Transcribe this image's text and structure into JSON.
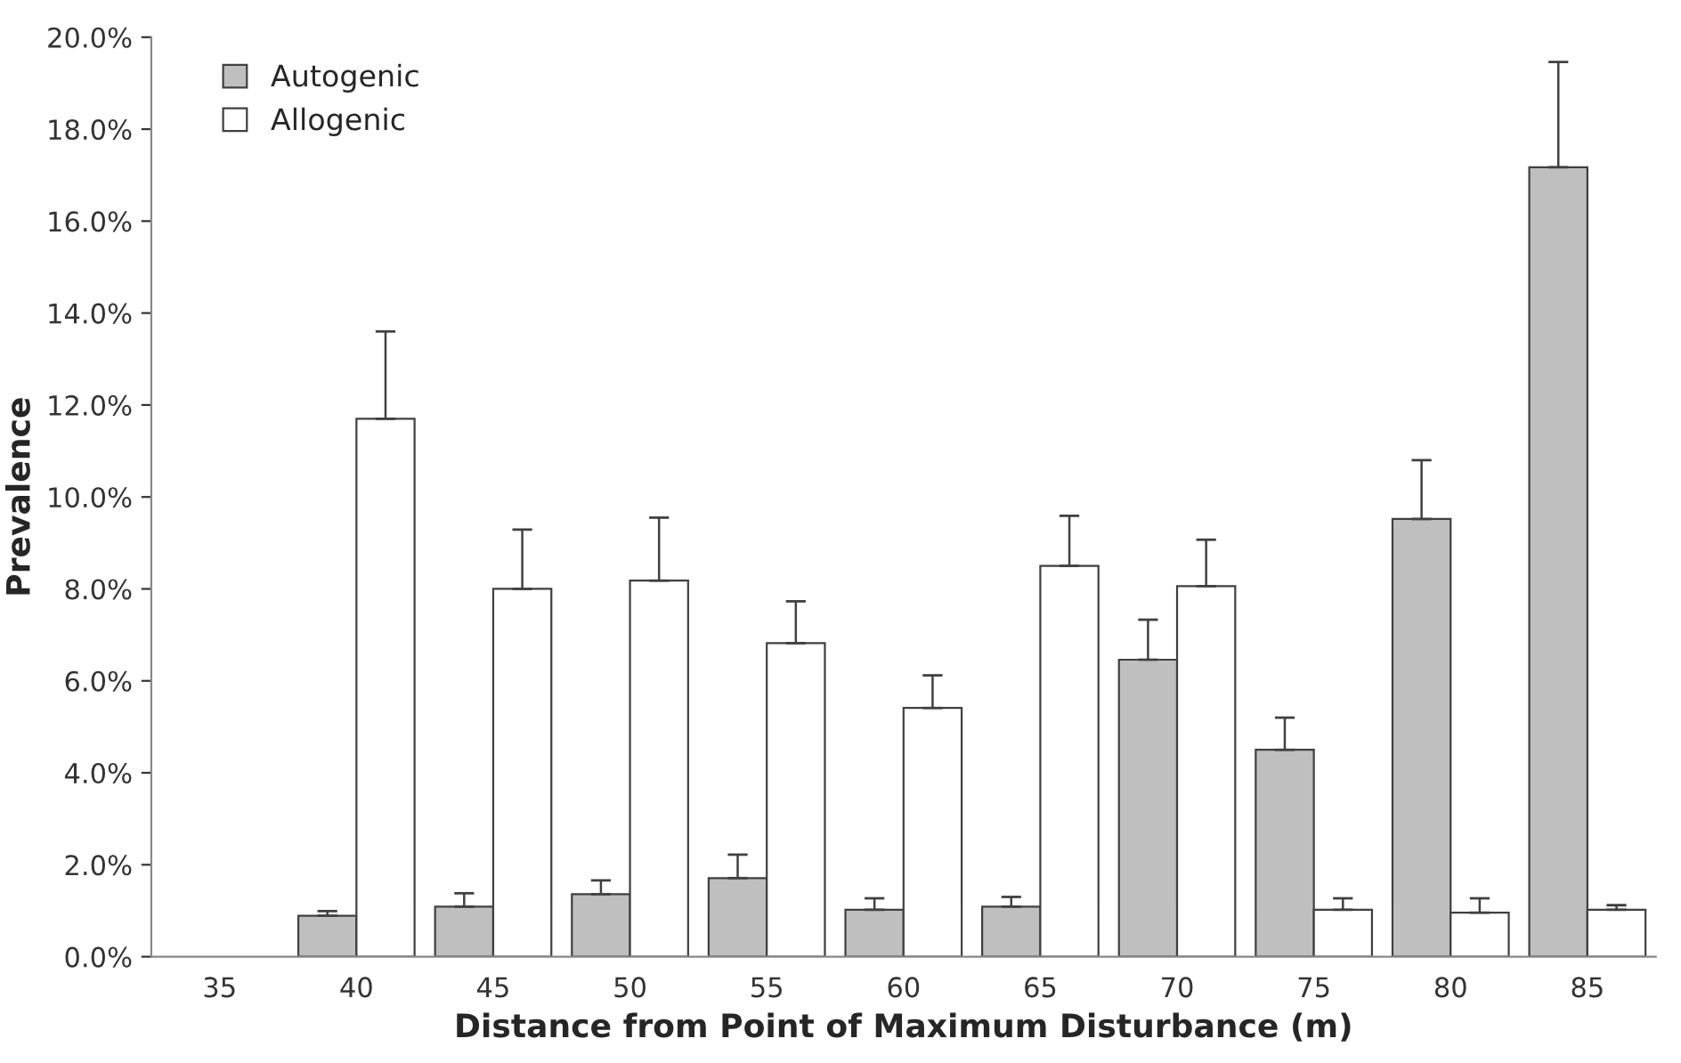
{
  "chart_data": {
    "type": "bar",
    "xlabel": "Distance from Point of Maximum Disturbance (m)",
    "ylabel": "Prevalence",
    "categories": [
      "35",
      "40",
      "45",
      "50",
      "55",
      "60",
      "65",
      "70",
      "75",
      "80",
      "85"
    ],
    "series": [
      {
        "name": "Autogenic",
        "color": "#bfbfbf",
        "values": [
          null,
          0.89,
          1.09,
          1.36,
          1.71,
          1.02,
          1.09,
          6.46,
          4.5,
          9.52,
          17.17
        ],
        "errors": [
          null,
          [
            0.89,
            0.99
          ],
          [
            1.09,
            1.38
          ],
          [
            1.36,
            1.66
          ],
          [
            1.71,
            2.22
          ],
          [
            1.02,
            1.27
          ],
          [
            1.09,
            1.3
          ],
          [
            6.46,
            7.33
          ],
          [
            4.5,
            5.2
          ],
          [
            9.52,
            10.8
          ],
          [
            17.17,
            19.46
          ]
        ]
      },
      {
        "name": "Allogenic",
        "color": "#ffffff",
        "values": [
          null,
          11.7,
          8.0,
          8.18,
          6.82,
          5.41,
          8.5,
          8.06,
          1.02,
          0.96,
          1.02
        ],
        "errors": [
          null,
          [
            11.7,
            13.6
          ],
          [
            8.0,
            9.29
          ],
          [
            8.18,
            9.55
          ],
          [
            6.82,
            7.73
          ],
          [
            5.41,
            6.12
          ],
          [
            8.5,
            9.59
          ],
          [
            8.06,
            9.07
          ],
          [
            1.02,
            1.27
          ],
          [
            0.96,
            1.27
          ],
          [
            1.02,
            1.12
          ]
        ]
      }
    ],
    "ylim": [
      0,
      20
    ],
    "yticks": [
      {
        "value": 0,
        "label": "0.0%"
      },
      {
        "value": 2,
        "label": "2.0%"
      },
      {
        "value": 4,
        "label": "4.0%"
      },
      {
        "value": 6,
        "label": "6.0%"
      },
      {
        "value": 8,
        "label": "8.0%"
      },
      {
        "value": 10,
        "label": "10.0%"
      },
      {
        "value": 12,
        "label": "12.0%"
      },
      {
        "value": 14,
        "label": "14.0%"
      },
      {
        "value": 16,
        "label": "16.0%"
      },
      {
        "value": 18,
        "label": "18.0%"
      },
      {
        "value": 20,
        "label": "20.0%"
      }
    ],
    "grid": false,
    "legend": "top left"
  }
}
